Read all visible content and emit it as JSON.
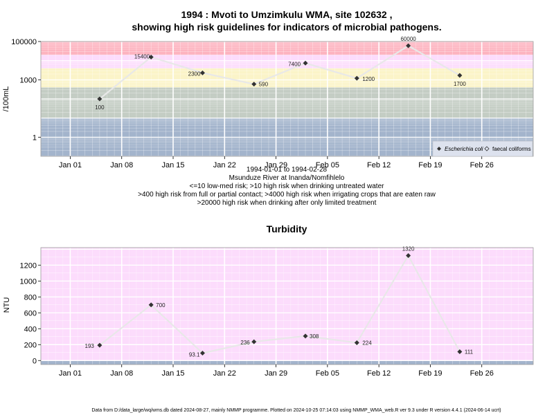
{
  "chart_data": [
    {
      "type": "line",
      "title": "1994 : Mvoti to Umzimkulu WMA, site 102632 ,",
      "title2": "showing high risk guidelines for indicators of microbial pathogens.",
      "ylabel": "/100mL",
      "y_scale": "log",
      "ylim": [
        0.1,
        100000
      ],
      "y_ticks": [
        1,
        1000,
        100000
      ],
      "y_tick_labels": [
        "1",
        "1000",
        "100000"
      ],
      "xlim": [
        "1993-12-28",
        "1994-03-05"
      ],
      "x_ticks": [
        "1994-01-01",
        "1994-01-08",
        "1994-01-15",
        "1994-01-22",
        "1994-01-29",
        "1994-02-05",
        "1994-02-12",
        "1994-02-19",
        "1994-02-26"
      ],
      "x_tick_labels": [
        "Jan 01",
        "Jan 08",
        "Jan 15",
        "Jan 22",
        "Jan 29",
        "Feb 05",
        "Feb 12",
        "Feb 19",
        "Feb 26"
      ],
      "bands": [
        {
          "from": 0.1,
          "to": 10,
          "color": "#a3b4cc"
        },
        {
          "from": 10,
          "to": 400,
          "color": "#c4cdc4"
        },
        {
          "from": 400,
          "to": 4000,
          "color": "#fbf4c8"
        },
        {
          "from": 4000,
          "to": 20000,
          "color": "#fcdcfc"
        },
        {
          "from": 20000,
          "to": 100000,
          "color": "#fdb4c0"
        }
      ],
      "series": [
        {
          "name": "Escherichia coli",
          "x": [
            "1994-01-05",
            "1994-01-12",
            "1994-01-19",
            "1994-01-26",
            "1994-02-02",
            "1994-02-09",
            "1994-02-16",
            "1994-02-23"
          ],
          "values": [
            100,
            15400,
            2300,
            590,
            7400,
            1200,
            60000,
            1700
          ],
          "labels": [
            "100",
            "15400",
            "2300",
            "590",
            "7400",
            "1200",
            "60000",
            "1700"
          ]
        }
      ],
      "legend": {
        "position": "bottom-right",
        "entries": [
          "Escherichia coli",
          "faecal coliforms"
        ]
      },
      "grid": true
    },
    {
      "type": "line",
      "title": "Turbidity",
      "ylabel": "NTU",
      "ylim": [
        -50,
        1420
      ],
      "y_ticks": [
        0,
        200,
        400,
        600,
        800,
        1000,
        1200
      ],
      "xlim": [
        "1993-12-28",
        "1994-03-05"
      ],
      "x_ticks": [
        "1994-01-01",
        "1994-01-08",
        "1994-01-15",
        "1994-01-22",
        "1994-01-29",
        "1994-02-05",
        "1994-02-12",
        "1994-02-19",
        "1994-02-26"
      ],
      "x_tick_labels": [
        "Jan 01",
        "Jan 08",
        "Jan 15",
        "Jan 22",
        "Jan 29",
        "Feb 05",
        "Feb 12",
        "Feb 19",
        "Feb 26"
      ],
      "bands": [
        {
          "from": -50,
          "to": 0,
          "color": "#a3b4cc"
        },
        {
          "from": 0,
          "to": 1420,
          "color": "#fcdcfc"
        }
      ],
      "series": [
        {
          "x": [
            "1994-01-05",
            "1994-01-12",
            "1994-01-19",
            "1994-01-26",
            "1994-02-02",
            "1994-02-09",
            "1994-02-16",
            "1994-02-23"
          ],
          "values": [
            193,
            700,
            93.1,
            236,
            308,
            224,
            1320,
            111
          ],
          "labels": [
            "193",
            "700",
            "93.1",
            "236",
            "308",
            "224",
            "1320",
            "111"
          ]
        }
      ],
      "grid": true
    }
  ],
  "subtitle_lines": [
    "1994-01-01 to 1994-02-28",
    "Msunduze River at Inanda/Nomfihlelo",
    "<=10 low-med risk; >10 high risk when drinking untreated water",
    ">400 high risk from full or partial contact; >4000 high risk when irrigating crops that are eaten raw",
    ">20000 high risk when drinking after only limited treatment"
  ],
  "footer": "Data from D:/data_large/wq/wms.db dated 2024-08-27, mainly NMMP programme. Plotted on 2024-10-25 07:14:03 using NMMP_WMA_web.R ver 9.3 under R version 4.4.1 (2024-06-14 ucrt)",
  "colors": {
    "line": "#e8e8e8",
    "marker": "#333333",
    "grid": "#ffffff",
    "frame": "#999999",
    "legend_bg": "#dde2ee"
  }
}
